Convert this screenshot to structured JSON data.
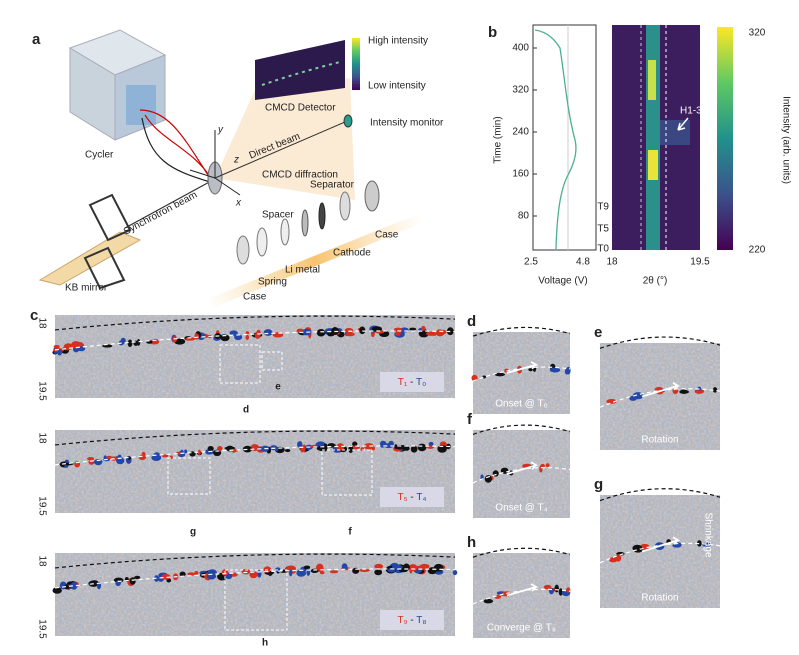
{
  "panel_a": {
    "label": "a",
    "detector_high": "High intensity",
    "detector_low": "Low intensity",
    "detector": "CMCD Detector",
    "monitor": "Intensity monitor",
    "direct_beam": "Direct beam",
    "cycler": "Cycler",
    "diffraction": "CMCD diffraction",
    "synchrotron": "Synchrotron beam",
    "axes": {
      "y": "y",
      "z": "z",
      "x": "x"
    },
    "separator": "Separator",
    "spacer": "Spacer",
    "case_top": "Case",
    "cathode": "Cathode",
    "li_metal": "Li metal",
    "spring": "Spring",
    "case_bottom": "Case",
    "kb_mirror": "KB mirror"
  },
  "panel_b": {
    "label": "b",
    "time_label": "Time (min)",
    "time_ticks": [
      400,
      320,
      240,
      160,
      80
    ],
    "voltage_ticks": [
      2.5,
      4.8
    ],
    "voltage_label": "Voltage (V)",
    "theta_ticks": [
      18,
      19.5
    ],
    "theta_label": "2θ (°)",
    "colorbar_ticks": [
      320,
      220
    ],
    "colorbar_label": "Intensity (arb. units)",
    "annotation": "H1-3",
    "markers": [
      "T9",
      "T5",
      "T0"
    ]
  },
  "panel_c": {
    "label": "c",
    "rows": [
      {
        "ticks": [
          18,
          19.5
        ],
        "legend": {
          "left": "T₁",
          "sep": " - ",
          "right": "T₀"
        },
        "insets": [
          "d",
          "e"
        ]
      },
      {
        "ticks": [
          18,
          19.5
        ],
        "legend": {
          "left": "T₅",
          "sep": " - ",
          "right": "T₄"
        },
        "insets": [
          "g",
          "f"
        ]
      },
      {
        "ticks": [
          18,
          19.5
        ],
        "legend": {
          "left": "T₉",
          "sep": " - ",
          "right": "T₈"
        },
        "insets": [
          "h"
        ]
      }
    ]
  },
  "panels": {
    "d": {
      "label": "d",
      "caption": "Onset @ T₀"
    },
    "e": {
      "label": "e",
      "caption": "Rotation"
    },
    "f": {
      "label": "f",
      "caption": "Onset @ T₄"
    },
    "g": {
      "label": "g",
      "caption": "Rotation",
      "caption2": "Shrinkage"
    },
    "h": {
      "label": "h",
      "caption": "Converge @ T₈"
    }
  }
}
